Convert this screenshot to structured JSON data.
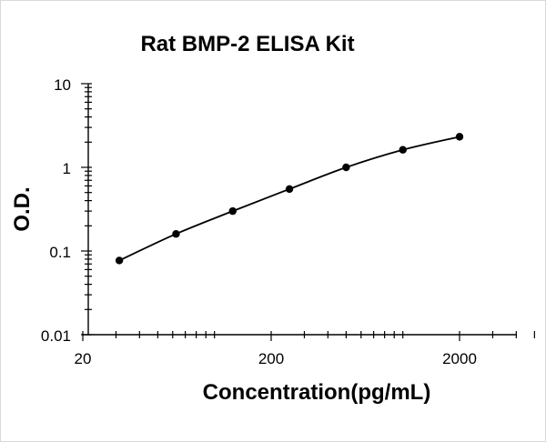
{
  "chart_data": {
    "type": "line",
    "title": "Rat BMP-2 ELISA Kit",
    "xlabel": "Concentration(pg/mL)",
    "ylabel": "O.D.",
    "x_scale": "log",
    "y_scale": "log",
    "xlim": [
      20,
      5000
    ],
    "ylim": [
      0.01,
      10
    ],
    "x_ticks": [
      "20",
      "200",
      "2000"
    ],
    "y_ticks": [
      "10",
      "1",
      "0.1",
      "0.01"
    ],
    "grid": false,
    "legend": "none",
    "marker": "circle",
    "series": [
      {
        "x": [
          31.25,
          62.5,
          125,
          250,
          500,
          1000,
          2000
        ],
        "y": [
          0.077,
          0.16,
          0.3,
          0.55,
          1.0,
          1.62,
          2.32
        ]
      }
    ],
    "colors": {
      "line": "#000000",
      "marker": "#000000"
    }
  }
}
